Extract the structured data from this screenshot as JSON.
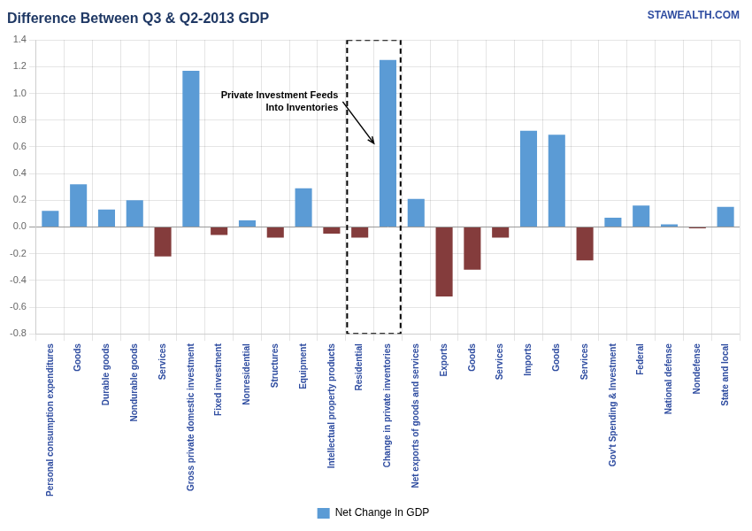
{
  "chart_data": {
    "type": "bar",
    "title": "Difference Between Q3 & Q2-2013 GDP",
    "watermark": "STAWEALTH.COM",
    "annotations": [
      {
        "text": "Private Investment Feeds\nInto Inventories",
        "categories": [
          "Residential",
          "Change in private inventories"
        ]
      }
    ],
    "categories": [
      "Personal consumption expenditures",
      "Goods",
      "Durable goods",
      "Nondurable goods",
      "Services",
      "Gross private domestic investment",
      "Fixed investment",
      "Nonresidential",
      "Structures",
      "Equipment",
      "Intellectual property products",
      "Residential",
      "Change in private inventories",
      "Net exports of goods and services",
      "Exports",
      "Goods",
      "Services",
      "Imports",
      "Goods",
      "Services",
      "Gov't Spending & Investment",
      "Federal",
      "National defense",
      "Nondefense",
      "State and local"
    ],
    "series": [
      {
        "name": "Net Change In GDP",
        "color": "#5b9bd5",
        "values": [
          0.12,
          0.32,
          0.13,
          0.2,
          -0.22,
          1.17,
          -0.06,
          0.05,
          -0.08,
          0.29,
          -0.05,
          -0.08,
          1.25,
          0.21,
          -0.52,
          -0.32,
          -0.08,
          0.72,
          0.69,
          -0.25,
          0.07,
          0.16,
          0.02,
          -0.01,
          0.15
        ],
        "colors": [
          "#5b9bd5",
          "#5b9bd5",
          "#5b9bd5",
          "#5b9bd5",
          "#843c3c",
          "#5b9bd5",
          "#843c3c",
          "#5b9bd5",
          "#843c3c",
          "#5b9bd5",
          "#843c3c",
          "#843c3c",
          "#5b9bd5",
          "#5b9bd5",
          "#843c3c",
          "#843c3c",
          "#843c3c",
          "#5b9bd5",
          "#5b9bd5",
          "#843c3c",
          "#5b9bd5",
          "#5b9bd5",
          "#5b9bd5",
          "#843c3c",
          "#5b9bd5"
        ]
      }
    ],
    "ylim": [
      -0.8,
      1.4
    ],
    "yticks": [
      -0.8,
      -0.6,
      -0.4,
      -0.2,
      {
        "value": 0.0,
        "label": "0.0"
      },
      0.2,
      0.4,
      0.6,
      0.8,
      {
        "value": 1.0,
        "label": "1.0"
      },
      1.2,
      1.4
    ],
    "grid": true,
    "legend": "bottom"
  }
}
